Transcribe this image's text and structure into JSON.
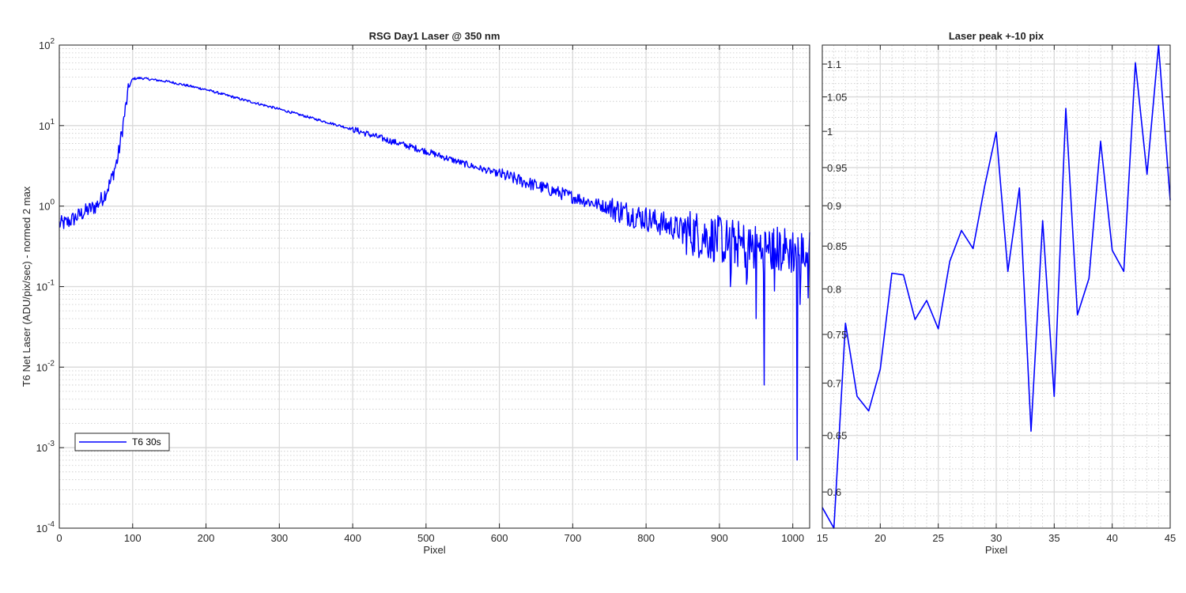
{
  "chart_data": [
    {
      "type": "line",
      "title": "RSG  Day1 Laser @ 350 nm",
      "xlabel": "Pixel",
      "ylabel": "T6 Net Laser (ADU/pix/sec) - normed 2 max",
      "xlim": [
        0,
        1023
      ],
      "ylim": [
        0.0001,
        100
      ],
      "yscale": "log",
      "grid": true,
      "minor_grid": true,
      "legend_position": "bottom-left",
      "xticks": [
        "0",
        "100",
        "200",
        "300",
        "400",
        "500",
        "600",
        "700",
        "800",
        "900",
        "1000"
      ],
      "yticks": [
        {
          "base": "10",
          "exp": "2"
        },
        {
          "base": "10",
          "exp": "1"
        },
        {
          "base": "10",
          "exp": "0"
        },
        {
          "base": "10",
          "exp": "-1"
        },
        {
          "base": "10",
          "exp": "-2"
        },
        {
          "base": "10",
          "exp": "-3"
        },
        {
          "base": "10",
          "exp": "-4"
        }
      ],
      "series": [
        {
          "name": "T6 30s",
          "color": "#0000ff",
          "description_points": [
            [
              0,
              0.6
            ],
            [
              10,
              0.62
            ],
            [
              20,
              0.7
            ],
            [
              30,
              0.8
            ],
            [
              40,
              0.9
            ],
            [
              50,
              1.0
            ],
            [
              60,
              1.3
            ],
            [
              70,
              2.0
            ],
            [
              80,
              4.0
            ],
            [
              88,
              12
            ],
            [
              95,
              30
            ],
            [
              100,
              38
            ],
            [
              110,
              39
            ],
            [
              150,
              35
            ],
            [
              200,
              28
            ],
            [
              250,
              21
            ],
            [
              300,
              16
            ],
            [
              350,
              12
            ],
            [
              400,
              9.0
            ],
            [
              450,
              6.5
            ],
            [
              500,
              4.8
            ],
            [
              550,
              3.4
            ],
            [
              600,
              2.5
            ],
            [
              650,
              1.8
            ],
            [
              700,
              1.3
            ],
            [
              750,
              0.95
            ],
            [
              800,
              0.7
            ],
            [
              850,
              0.5
            ],
            [
              900,
              0.38
            ],
            [
              950,
              0.3
            ],
            [
              1000,
              0.28
            ],
            [
              1023,
              0.25
            ]
          ],
          "dips": [
            [
              961,
              0.006
            ],
            [
              1006,
              0.0007
            ],
            [
              1010,
              0.06
            ],
            [
              915,
              0.1
            ],
            [
              950,
              0.04
            ]
          ]
        }
      ]
    },
    {
      "type": "line",
      "title": "Laser peak +-10 pix",
      "xlabel": "Pixel",
      "ylabel": "",
      "xlim": [
        15,
        45
      ],
      "ylim": [
        0.57,
        1.13
      ],
      "yscale": "log",
      "grid": true,
      "minor_grid": true,
      "xticks": [
        "15",
        "20",
        "25",
        "30",
        "35",
        "40",
        "45"
      ],
      "yticks": [
        "0.6",
        "0.65",
        "0.7",
        "0.75",
        "0.8",
        "0.85",
        "0.9",
        "0.95",
        "1",
        "1.05",
        "1.1"
      ],
      "series": [
        {
          "color": "#0000ff",
          "x": [
            15,
            16,
            17,
            18,
            19,
            20,
            21,
            22,
            23,
            24,
            25,
            26,
            27,
            28,
            29,
            30,
            31,
            32,
            33,
            34,
            35,
            36,
            37,
            38,
            39,
            40,
            41,
            42,
            43,
            44,
            45
          ],
          "y": [
            0.587,
            0.567,
            0.762,
            0.687,
            0.673,
            0.714,
            0.818,
            0.816,
            0.766,
            0.787,
            0.756,
            0.832,
            0.869,
            0.847,
            0.925,
            0.999,
            0.82,
            0.923,
            0.654,
            0.881,
            0.687,
            1.033,
            0.771,
            0.812,
            0.986,
            0.845,
            0.82,
            1.102,
            0.941,
            1.13,
            0.907
          ]
        }
      ]
    }
  ]
}
